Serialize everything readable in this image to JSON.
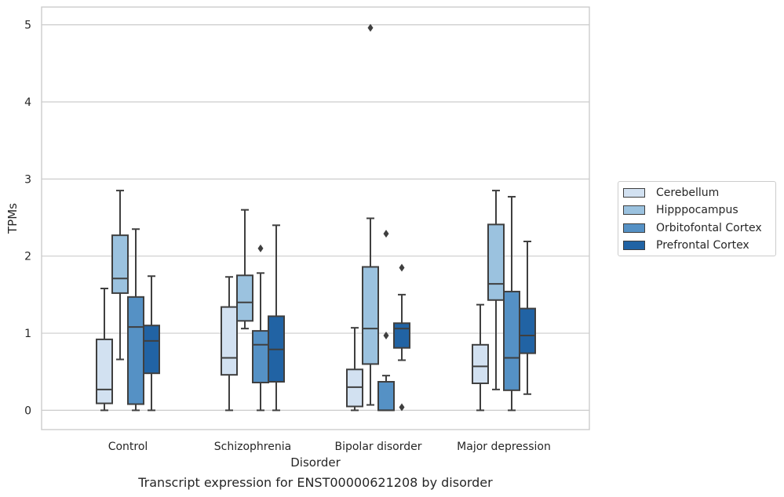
{
  "caption": "Transcript expression for ENST00000621208 by disorder",
  "chart_data": {
    "type": "box",
    "title": "",
    "xlabel": "Disorder",
    "ylabel": "TPMs",
    "ylim": [
      -0.25,
      5.23
    ],
    "yticks": [
      "0",
      "1",
      "2",
      "3",
      "4",
      "5"
    ],
    "grid": true,
    "legend_position": "right",
    "categories": [
      "Control",
      "Schizophrenia",
      "Bipolar disorder",
      "Major depression"
    ],
    "series": [
      {
        "name": "Cerebellum",
        "color": "#d2e1f1",
        "boxes": [
          {
            "whislo": 0.0,
            "q1": 0.09,
            "med": 0.27,
            "q3": 0.92,
            "whishi": 1.58,
            "fliers": []
          },
          {
            "whislo": 0.0,
            "q1": 0.46,
            "med": 0.68,
            "q3": 1.34,
            "whishi": 1.73,
            "fliers": []
          },
          {
            "whislo": 0.0,
            "q1": 0.05,
            "med": 0.3,
            "q3": 0.53,
            "whishi": 1.07,
            "fliers": []
          },
          {
            "whislo": 0.0,
            "q1": 0.35,
            "med": 0.57,
            "q3": 0.85,
            "whishi": 1.37,
            "fliers": []
          }
        ]
      },
      {
        "name": "Hipppocampus",
        "color": "#9bc2df",
        "boxes": [
          {
            "whislo": 0.66,
            "q1": 1.52,
            "med": 1.71,
            "q3": 2.27,
            "whishi": 2.85,
            "fliers": []
          },
          {
            "whislo": 1.06,
            "q1": 1.16,
            "med": 1.4,
            "q3": 1.75,
            "whishi": 2.6,
            "fliers": []
          },
          {
            "whislo": 0.07,
            "q1": 0.6,
            "med": 1.06,
            "q3": 1.86,
            "whishi": 2.49,
            "fliers": [
              4.96
            ]
          },
          {
            "whislo": 0.27,
            "q1": 1.43,
            "med": 1.64,
            "q3": 2.41,
            "whishi": 2.85,
            "fliers": []
          }
        ]
      },
      {
        "name": "Orbitofontal Cortex",
        "color": "#5591c5",
        "boxes": [
          {
            "whislo": 0.0,
            "q1": 0.08,
            "med": 1.08,
            "q3": 1.47,
            "whishi": 2.35,
            "fliers": []
          },
          {
            "whislo": 0.0,
            "q1": 0.36,
            "med": 0.85,
            "q3": 1.03,
            "whishi": 1.78,
            "fliers": [
              2.1
            ]
          },
          {
            "whislo": 0.0,
            "q1": 0.0,
            "med": 0.0,
            "q3": 0.37,
            "whishi": 0.45,
            "fliers": [
              0.97,
              2.29
            ]
          },
          {
            "whislo": 0.0,
            "q1": 0.26,
            "med": 0.68,
            "q3": 1.54,
            "whishi": 2.77,
            "fliers": []
          }
        ]
      },
      {
        "name": "Prefrontal Cortex",
        "color": "#2163a4",
        "boxes": [
          {
            "whislo": 0.0,
            "q1": 0.48,
            "med": 0.9,
            "q3": 1.1,
            "whishi": 1.74,
            "fliers": []
          },
          {
            "whislo": 0.0,
            "q1": 0.37,
            "med": 0.79,
            "q3": 1.22,
            "whishi": 2.4,
            "fliers": []
          },
          {
            "whislo": 0.65,
            "q1": 0.81,
            "med": 1.06,
            "q3": 1.13,
            "whishi": 1.5,
            "fliers": [
              1.85,
              0.04
            ]
          },
          {
            "whislo": 0.21,
            "q1": 0.74,
            "med": 0.97,
            "q3": 1.32,
            "whishi": 2.19,
            "fliers": []
          }
        ]
      }
    ]
  }
}
